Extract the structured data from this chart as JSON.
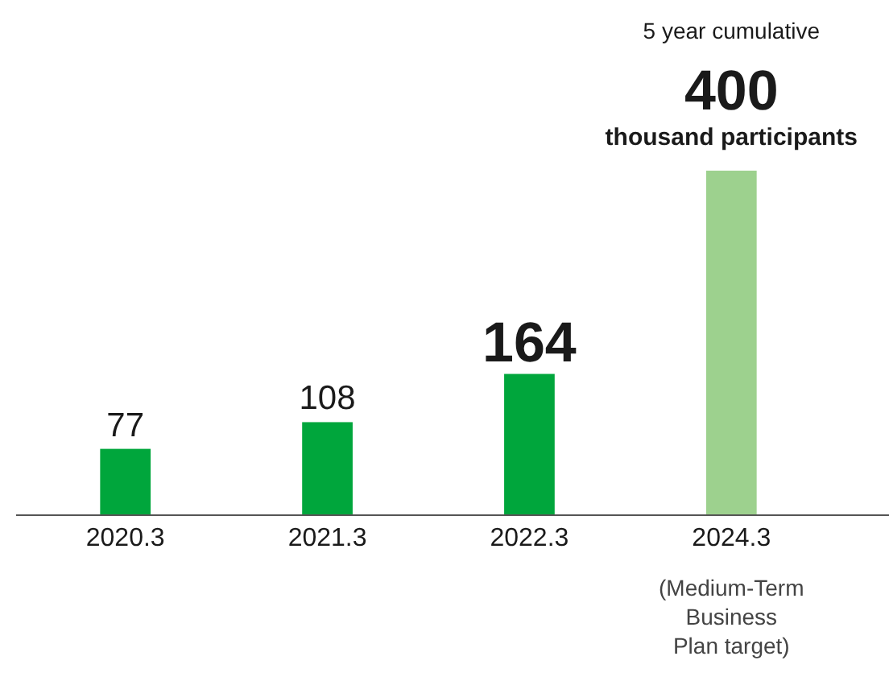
{
  "chart_data": {
    "type": "bar",
    "categories": [
      "2020.3",
      "2021.3",
      "2022.3",
      "2024.3"
    ],
    "values": [
      77,
      108,
      164,
      400
    ],
    "colors": [
      "#00a63c",
      "#00a63c",
      "#00a63c",
      "#9dd18e"
    ],
    "data_labels": true,
    "annotations": [
      "5 year cumulative",
      "thousand participants",
      "(Medium-Term Business Plan target)"
    ]
  }
}
